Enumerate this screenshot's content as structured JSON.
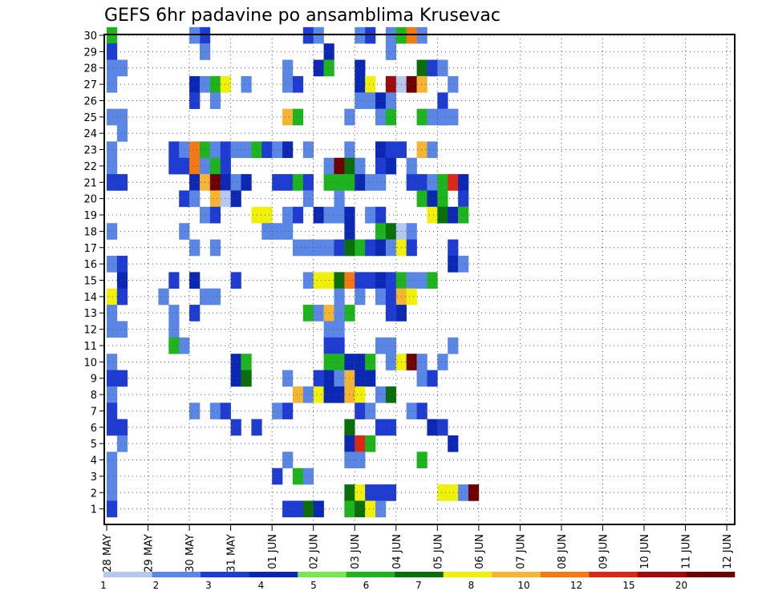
{
  "title": "GEFS 6hr padavine po ansamblima Krusevac",
  "chart_data": {
    "type": "heatmap",
    "title": "GEFS 6hr padavine po ansamblima Krusevac",
    "x_tick_labels": [
      "28 MAY",
      "29 MAY",
      "30 MAY",
      "31 MAY",
      "01 JUN",
      "02 JUN",
      "03 JUN",
      "04 JUN",
      "05 JUN",
      "06 JUN",
      "07 JUN",
      "08 JUN",
      "09 JUN",
      "10 JUN",
      "11 JUN",
      "12 JUN"
    ],
    "y_tick_labels": [
      "1",
      "2",
      "3",
      "4",
      "5",
      "6",
      "7",
      "8",
      "9",
      "10",
      "11",
      "12",
      "13",
      "14",
      "15",
      "16",
      "17",
      "18",
      "19",
      "20",
      "21",
      "22",
      "23",
      "24",
      "25",
      "26",
      "27",
      "28",
      "29",
      "30"
    ],
    "x_steps_per_day": 4,
    "y_members": 30,
    "grid": true,
    "colorbar": {
      "position": "bottom",
      "labels": [
        "1",
        "2",
        "3",
        "4",
        "5",
        "6",
        "7",
        "8",
        "10",
        "12",
        "15",
        "20"
      ],
      "colors": [
        "#b4c8f0",
        "#5a87e6",
        "#1e3cd2",
        "#0a28b4",
        "#78e650",
        "#1eb41e",
        "#0a6e0a",
        "#f0f00a",
        "#f5b432",
        "#f57814",
        "#dc2814",
        "#a00a0a",
        "#6e0000"
      ]
    },
    "cells": [
      [
        30,
        0,
        5
      ],
      [
        30,
        9,
        2
      ],
      [
        30,
        8,
        1
      ],
      [
        30,
        19,
        2
      ],
      [
        30,
        20,
        1
      ],
      [
        30,
        24,
        1
      ],
      [
        30,
        25,
        2
      ],
      [
        30,
        27,
        1
      ],
      [
        30,
        28,
        5
      ],
      [
        30,
        29,
        9
      ],
      [
        30,
        30,
        1
      ],
      [
        29,
        0,
        2
      ],
      [
        29,
        9,
        1
      ],
      [
        29,
        21,
        3
      ],
      [
        29,
        27,
        1
      ],
      [
        28,
        0,
        1
      ],
      [
        28,
        1,
        1
      ],
      [
        28,
        17,
        1
      ],
      [
        28,
        20,
        3
      ],
      [
        28,
        21,
        5
      ],
      [
        28,
        24,
        3
      ],
      [
        28,
        30,
        6
      ],
      [
        28,
        31,
        2
      ],
      [
        28,
        32,
        1
      ],
      [
        27,
        0,
        1
      ],
      [
        27,
        8,
        3
      ],
      [
        27,
        9,
        1
      ],
      [
        27,
        10,
        5
      ],
      [
        27,
        11,
        7
      ],
      [
        27,
        13,
        1
      ],
      [
        27,
        17,
        1
      ],
      [
        27,
        18,
        2
      ],
      [
        27,
        24,
        3
      ],
      [
        27,
        25,
        7
      ],
      [
        27,
        27,
        11
      ],
      [
        27,
        28,
        13
      ],
      [
        27,
        29,
        12
      ],
      [
        27,
        30,
        8
      ],
      [
        27,
        33,
        1
      ],
      [
        26,
        8,
        2
      ],
      [
        26,
        10,
        1
      ],
      [
        26,
        24,
        1
      ],
      [
        26,
        25,
        1
      ],
      [
        26,
        26,
        3
      ],
      [
        26,
        27,
        1
      ],
      [
        26,
        32,
        2
      ],
      [
        25,
        0,
        1
      ],
      [
        25,
        1,
        1
      ],
      [
        25,
        17,
        8
      ],
      [
        25,
        18,
        5
      ],
      [
        25,
        23,
        1
      ],
      [
        25,
        26,
        1
      ],
      [
        25,
        27,
        5
      ],
      [
        25,
        30,
        5
      ],
      [
        25,
        31,
        1
      ],
      [
        25,
        32,
        2
      ],
      [
        25,
        32,
        1
      ],
      [
        25,
        33,
        1
      ],
      [
        24,
        1,
        1
      ],
      [
        23,
        0,
        1
      ],
      [
        23,
        6,
        2
      ],
      [
        23,
        7,
        1
      ],
      [
        23,
        8,
        9
      ],
      [
        23,
        9,
        5
      ],
      [
        23,
        10,
        1
      ],
      [
        23,
        11,
        2
      ],
      [
        23,
        12,
        1
      ],
      [
        23,
        13,
        1
      ],
      [
        23,
        14,
        5
      ],
      [
        23,
        15,
        2
      ],
      [
        23,
        16,
        1
      ],
      [
        23,
        17,
        3
      ],
      [
        23,
        19,
        1
      ],
      [
        23,
        23,
        1
      ],
      [
        23,
        26,
        3
      ],
      [
        23,
        27,
        2
      ],
      [
        23,
        28,
        2
      ],
      [
        23,
        30,
        8
      ],
      [
        23,
        31,
        1
      ],
      [
        22,
        0,
        1
      ],
      [
        22,
        6,
        2
      ],
      [
        22,
        7,
        2
      ],
      [
        22,
        8,
        9
      ],
      [
        22,
        9,
        1
      ],
      [
        22,
        10,
        5
      ],
      [
        22,
        11,
        2
      ],
      [
        22,
        21,
        1
      ],
      [
        22,
        22,
        12
      ],
      [
        22,
        23,
        6
      ],
      [
        22,
        24,
        1
      ],
      [
        22,
        26,
        2
      ],
      [
        22,
        27,
        3
      ],
      [
        22,
        29,
        1
      ],
      [
        21,
        0,
        2
      ],
      [
        21,
        1,
        2
      ],
      [
        21,
        8,
        3
      ],
      [
        21,
        9,
        8
      ],
      [
        21,
        10,
        12
      ],
      [
        21,
        11,
        3
      ],
      [
        21,
        12,
        1
      ],
      [
        21,
        13,
        3
      ],
      [
        21,
        16,
        2
      ],
      [
        21,
        17,
        2
      ],
      [
        21,
        18,
        5
      ],
      [
        21,
        19,
        2
      ],
      [
        21,
        21,
        5
      ],
      [
        21,
        22,
        5
      ],
      [
        21,
        23,
        5
      ],
      [
        21,
        24,
        3
      ],
      [
        21,
        25,
        1
      ],
      [
        21,
        26,
        1
      ],
      [
        21,
        29,
        2
      ],
      [
        21,
        30,
        2
      ],
      [
        21,
        31,
        1
      ],
      [
        21,
        32,
        5
      ],
      [
        21,
        33,
        10
      ],
      [
        21,
        34,
        3
      ],
      [
        20,
        7,
        2
      ],
      [
        20,
        8,
        1
      ],
      [
        20,
        10,
        8
      ],
      [
        20,
        11,
        13
      ],
      [
        20,
        12,
        3
      ],
      [
        20,
        19,
        1
      ],
      [
        20,
        22,
        1
      ],
      [
        20,
        30,
        5
      ],
      [
        20,
        31,
        3
      ],
      [
        20,
        32,
        5
      ],
      [
        20,
        34,
        2
      ],
      [
        19,
        9,
        1
      ],
      [
        19,
        10,
        2
      ],
      [
        19,
        14,
        7
      ],
      [
        19,
        15,
        7
      ],
      [
        19,
        17,
        1
      ],
      [
        19,
        18,
        2
      ],
      [
        19,
        20,
        3
      ],
      [
        19,
        21,
        1
      ],
      [
        19,
        22,
        1
      ],
      [
        19,
        23,
        3
      ],
      [
        19,
        25,
        1
      ],
      [
        19,
        26,
        2
      ],
      [
        19,
        31,
        7
      ],
      [
        19,
        32,
        6
      ],
      [
        19,
        33,
        3
      ],
      [
        19,
        34,
        8
      ],
      [
        19,
        34,
        5
      ],
      [
        18,
        0,
        1
      ],
      [
        18,
        7,
        1
      ],
      [
        18,
        15,
        1
      ],
      [
        18,
        16,
        1
      ],
      [
        18,
        17,
        1
      ],
      [
        18,
        23,
        3
      ],
      [
        18,
        26,
        5
      ],
      [
        18,
        27,
        6
      ],
      [
        18,
        28,
        13
      ],
      [
        18,
        29,
        1
      ],
      [
        17,
        8,
        1
      ],
      [
        17,
        10,
        1
      ],
      [
        17,
        18,
        1
      ],
      [
        17,
        19,
        1
      ],
      [
        17,
        20,
        1
      ],
      [
        17,
        21,
        1
      ],
      [
        17,
        22,
        2
      ],
      [
        17,
        23,
        1
      ],
      [
        17,
        23,
        6
      ],
      [
        17,
        24,
        5
      ],
      [
        17,
        25,
        2
      ],
      [
        17,
        26,
        3
      ],
      [
        17,
        27,
        1
      ],
      [
        17,
        28,
        7
      ],
      [
        17,
        29,
        2
      ],
      [
        17,
        33,
        2
      ],
      [
        16,
        0,
        1
      ],
      [
        16,
        1,
        2
      ],
      [
        16,
        33,
        3
      ],
      [
        16,
        34,
        1
      ],
      [
        15,
        1,
        3
      ],
      [
        15,
        6,
        2
      ],
      [
        15,
        8,
        3
      ],
      [
        15,
        12,
        2
      ],
      [
        15,
        19,
        1
      ],
      [
        15,
        20,
        7
      ],
      [
        15,
        21,
        7
      ],
      [
        15,
        22,
        6
      ],
      [
        15,
        23,
        9
      ],
      [
        15,
        24,
        2
      ],
      [
        15,
        25,
        2
      ],
      [
        15,
        26,
        3
      ],
      [
        15,
        27,
        2
      ],
      [
        15,
        28,
        5
      ],
      [
        15,
        29,
        1
      ],
      [
        15,
        30,
        1
      ],
      [
        15,
        31,
        5
      ],
      [
        14,
        0,
        7
      ],
      [
        14,
        1,
        2
      ],
      [
        14,
        5,
        1
      ],
      [
        14,
        9,
        1
      ],
      [
        14,
        10,
        1
      ],
      [
        14,
        22,
        1
      ],
      [
        14,
        24,
        1
      ],
      [
        14,
        26,
        1
      ],
      [
        14,
        27,
        2
      ],
      [
        14,
        28,
        8
      ],
      [
        14,
        29,
        7
      ],
      [
        13,
        0,
        1
      ],
      [
        13,
        6,
        1
      ],
      [
        13,
        8,
        2
      ],
      [
        13,
        19,
        5
      ],
      [
        13,
        20,
        1
      ],
      [
        13,
        21,
        8
      ],
      [
        13,
        22,
        1
      ],
      [
        13,
        23,
        5
      ],
      [
        13,
        27,
        2
      ],
      [
        13,
        28,
        3
      ],
      [
        12,
        0,
        1
      ],
      [
        12,
        1,
        1
      ],
      [
        12,
        6,
        1
      ],
      [
        12,
        21,
        1
      ],
      [
        12,
        22,
        1
      ],
      [
        11,
        6,
        5
      ],
      [
        11,
        7,
        1
      ],
      [
        11,
        21,
        2
      ],
      [
        11,
        22,
        2
      ],
      [
        11,
        26,
        1
      ],
      [
        11,
        27,
        1
      ],
      [
        11,
        33,
        1
      ],
      [
        10,
        0,
        1
      ],
      [
        10,
        12,
        3
      ],
      [
        10,
        13,
        5
      ],
      [
        10,
        21,
        5
      ],
      [
        10,
        22,
        5
      ],
      [
        10,
        23,
        3
      ],
      [
        10,
        24,
        3
      ],
      [
        10,
        25,
        5
      ],
      [
        10,
        27,
        1
      ],
      [
        10,
        28,
        7
      ],
      [
        10,
        29,
        12
      ],
      [
        10,
        30,
        1
      ],
      [
        10,
        32,
        1
      ],
      [
        9,
        0,
        2
      ],
      [
        9,
        1,
        2
      ],
      [
        9,
        12,
        3
      ],
      [
        9,
        13,
        6
      ],
      [
        9,
        17,
        1
      ],
      [
        9,
        20,
        2
      ],
      [
        9,
        21,
        3
      ],
      [
        9,
        22,
        1
      ],
      [
        9,
        23,
        8
      ],
      [
        9,
        24,
        3
      ],
      [
        9,
        25,
        3
      ],
      [
        9,
        30,
        1
      ],
      [
        9,
        31,
        2
      ],
      [
        8,
        0,
        1
      ],
      [
        8,
        18,
        8
      ],
      [
        8,
        19,
        1
      ],
      [
        8,
        20,
        7
      ],
      [
        8,
        21,
        3
      ],
      [
        8,
        22,
        3
      ],
      [
        8,
        23,
        8
      ],
      [
        8,
        24,
        7
      ],
      [
        8,
        26,
        1
      ],
      [
        8,
        27,
        6
      ],
      [
        7,
        0,
        2
      ],
      [
        7,
        8,
        1
      ],
      [
        7,
        10,
        1
      ],
      [
        7,
        11,
        2
      ],
      [
        7,
        16,
        1
      ],
      [
        7,
        17,
        2
      ],
      [
        7,
        24,
        2
      ],
      [
        7,
        25,
        1
      ],
      [
        7,
        29,
        1
      ],
      [
        7,
        30,
        2
      ],
      [
        6,
        0,
        2
      ],
      [
        6,
        1,
        2
      ],
      [
        6,
        12,
        2
      ],
      [
        6,
        14,
        2
      ],
      [
        6,
        23,
        6
      ],
      [
        6,
        26,
        2
      ],
      [
        6,
        27,
        2
      ],
      [
        6,
        31,
        3
      ],
      [
        6,
        32,
        2
      ],
      [
        5,
        1,
        1
      ],
      [
        5,
        23,
        3
      ],
      [
        5,
        24,
        10
      ],
      [
        5,
        25,
        5
      ],
      [
        5,
        33,
        3
      ],
      [
        4,
        0,
        1
      ],
      [
        4,
        17,
        1
      ],
      [
        4,
        23,
        1
      ],
      [
        4,
        24,
        1
      ],
      [
        4,
        30,
        5
      ],
      [
        3,
        0,
        1
      ],
      [
        3,
        16,
        2
      ],
      [
        3,
        18,
        5
      ],
      [
        3,
        19,
        1
      ],
      [
        2,
        0,
        1
      ],
      [
        2,
        23,
        6
      ],
      [
        2,
        24,
        7
      ],
      [
        2,
        25,
        2
      ],
      [
        2,
        26,
        2
      ],
      [
        2,
        27,
        2
      ],
      [
        2,
        32,
        7
      ],
      [
        2,
        33,
        7
      ],
      [
        2,
        34,
        1
      ],
      [
        2,
        35,
        12
      ],
      [
        1,
        0,
        2
      ],
      [
        1,
        17,
        2
      ],
      [
        1,
        18,
        2
      ],
      [
        1,
        19,
        6
      ],
      [
        1,
        20,
        3
      ],
      [
        1,
        23,
        5
      ],
      [
        1,
        24,
        6
      ],
      [
        1,
        25,
        7
      ],
      [
        1,
        26,
        1
      ]
    ]
  }
}
